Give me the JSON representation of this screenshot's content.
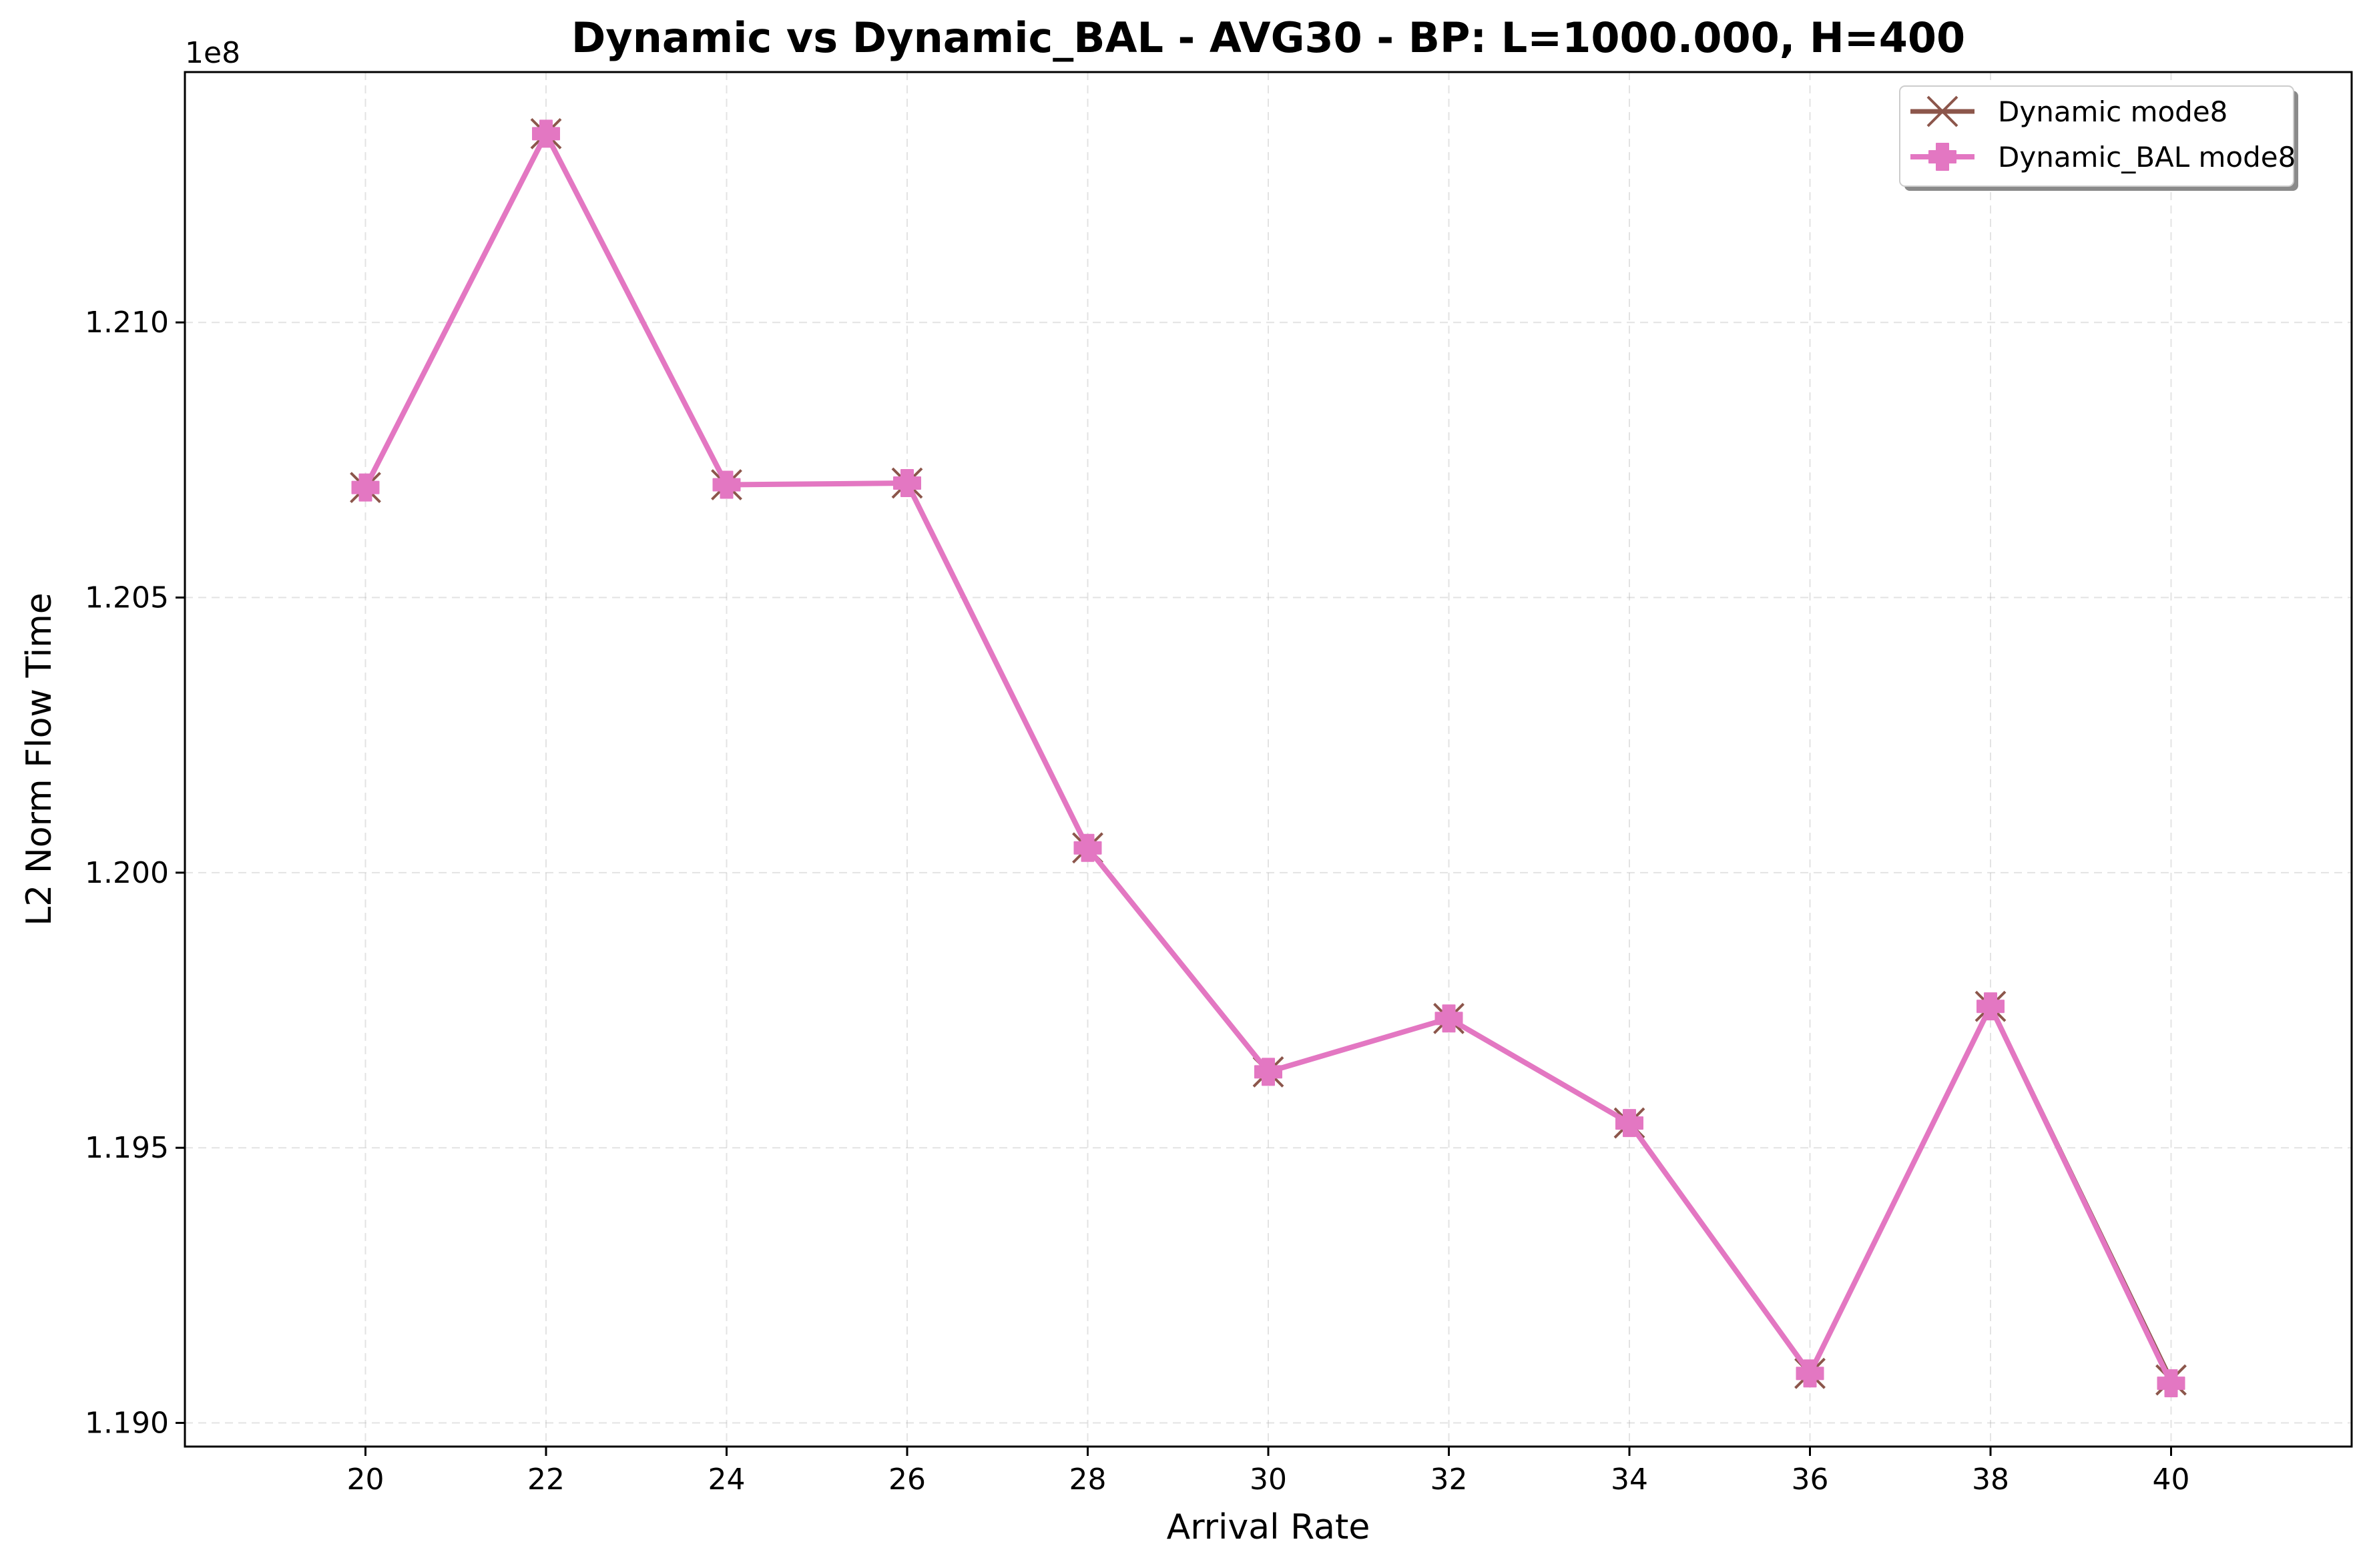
{
  "chart_data": {
    "type": "line",
    "title": "Dynamic vs Dynamic_BAL - AVG30 - BP: L=1000.000, H=400",
    "xlabel": "Arrival Rate",
    "ylabel": "L2 Norm Flow Time",
    "y_offset_label": "1e8",
    "xlim": [
      18,
      42
    ],
    "ylim": [
      1.18957,
      1.21455
    ],
    "x_ticks": [
      20,
      22,
      24,
      26,
      28,
      30,
      32,
      34,
      36,
      38,
      40
    ],
    "x_tick_labels": [
      "20",
      "22",
      "24",
      "26",
      "28",
      "30",
      "32",
      "34",
      "36",
      "38",
      "40"
    ],
    "y_ticks": [
      1.19,
      1.195,
      1.2,
      1.205,
      1.21
    ],
    "y_tick_labels": [
      "1.190",
      "1.195",
      "1.200",
      "1.205",
      "1.210"
    ],
    "grid": true,
    "legend_position": "top-right",
    "x": [
      20,
      22,
      24,
      26,
      28,
      30,
      32,
      34,
      36,
      38,
      40
    ],
    "series": [
      {
        "name": "Dynamic mode8",
        "color": "#8c564b",
        "marker": "x",
        "values": [
          1.207,
          1.21343,
          1.20705,
          1.20708,
          1.20045,
          1.19638,
          1.19735,
          1.19545,
          1.1909,
          1.19757,
          1.19078
        ]
      },
      {
        "name": "Dynamic_BAL mode8",
        "color": "#e377c2",
        "marker": "P",
        "values": [
          1.207,
          1.21343,
          1.20705,
          1.20708,
          1.20045,
          1.19638,
          1.19735,
          1.19545,
          1.1909,
          1.19757,
          1.19072
        ]
      }
    ]
  }
}
